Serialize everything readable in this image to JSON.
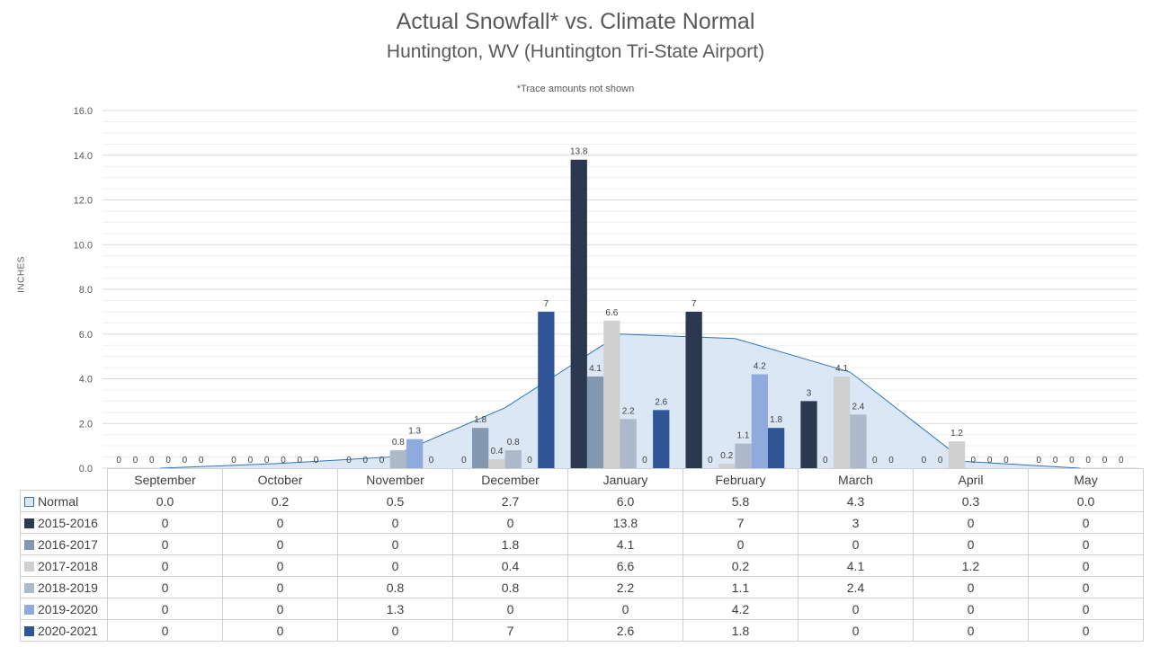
{
  "chart_data": {
    "type": "bar",
    "title": "Actual Snowfall* vs. Climate Normal",
    "subtitle": "Huntington, WV (Huntington Tri-State Airport)",
    "note": "*Trace amounts not shown",
    "ylabel": "INCHES",
    "xlabel": "",
    "ylim": [
      0,
      16
    ],
    "yticks": [
      "0.0",
      "2.0",
      "4.0",
      "6.0",
      "8.0",
      "10.0",
      "12.0",
      "14.0",
      "16.0"
    ],
    "grid": true,
    "legend": "data-table",
    "categories": [
      "September",
      "October",
      "November",
      "December",
      "January",
      "February",
      "March",
      "April",
      "May"
    ],
    "normal": {
      "name": "Normal",
      "type": "area",
      "color": "#dbe7f5",
      "line_color": "#2e75b6",
      "values": [
        0.0,
        0.2,
        0.5,
        2.7,
        6.0,
        5.8,
        4.3,
        0.3,
        0.0
      ],
      "display": [
        "0.0",
        "0.2",
        "0.5",
        "2.7",
        "6.0",
        "5.8",
        "4.3",
        "0.3",
        "0.0"
      ]
    },
    "series": [
      {
        "name": "2015-2016",
        "color": "#2b3850",
        "values": [
          0,
          0,
          0,
          0,
          13.8,
          7,
          3,
          0,
          0
        ],
        "display": [
          "0",
          "0",
          "0",
          "0",
          "13.8",
          "7",
          "3",
          "0",
          "0"
        ]
      },
      {
        "name": "2016-2017",
        "color": "#8497b0",
        "values": [
          0,
          0,
          0,
          1.8,
          4.1,
          0,
          0,
          0,
          0
        ],
        "display": [
          "0",
          "0",
          "0",
          "1.8",
          "4.1",
          "0",
          "0",
          "0",
          "0"
        ]
      },
      {
        "name": "2017-2018",
        "color": "#d0d0d0",
        "values": [
          0,
          0,
          0,
          0.4,
          6.6,
          0.2,
          4.1,
          1.2,
          0
        ],
        "display": [
          "0",
          "0",
          "0",
          "0.4",
          "6.6",
          "0.2",
          "4.1",
          "1.2",
          "0"
        ]
      },
      {
        "name": "2018-2019",
        "color": "#adb9ca",
        "values": [
          0,
          0,
          0.8,
          0.8,
          2.2,
          1.1,
          2.4,
          0,
          0
        ],
        "display": [
          "0",
          "0",
          "0.8",
          "0.8",
          "2.2",
          "1.1",
          "2.4",
          "0",
          "0"
        ]
      },
      {
        "name": "2019-2020",
        "color": "#8faadc",
        "values": [
          0,
          0,
          1.3,
          0,
          0,
          4.2,
          0,
          0,
          0
        ],
        "display": [
          "0",
          "0",
          "1.3",
          "0",
          "0",
          "4.2",
          "0",
          "0",
          "0"
        ]
      },
      {
        "name": "2020-2021",
        "color": "#2f5597",
        "values": [
          0,
          0,
          0,
          7,
          2.6,
          1.8,
          0,
          0,
          0
        ],
        "display": [
          "0",
          "0",
          "0",
          "7",
          "2.6",
          "1.8",
          "0",
          "0",
          "0"
        ]
      }
    ]
  }
}
